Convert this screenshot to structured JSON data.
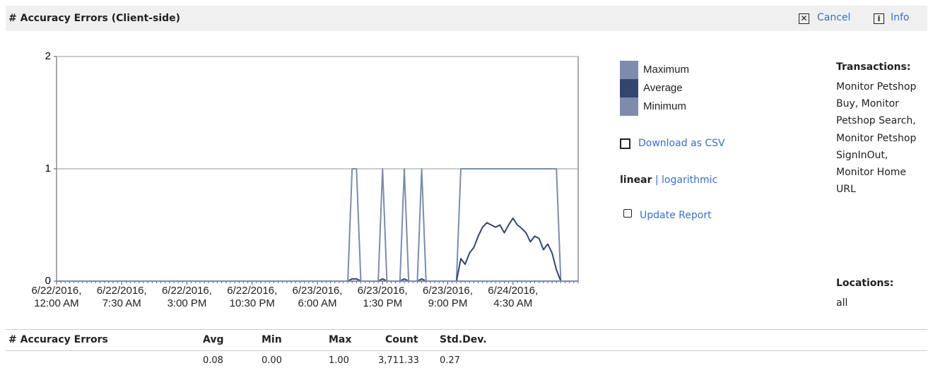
{
  "header": {
    "title": "# Accuracy Errors (Client-side)",
    "actions": [
      "Cancel",
      "Info"
    ]
  },
  "chart_data": {
    "type": "line",
    "categories": [
      "6/22/2016, 12:00 AM",
      null,
      null,
      null,
      null,
      null,
      null,
      null,
      null,
      null,
      null,
      null,
      null,
      null,
      null,
      "6/22/2016, 7:30 AM",
      null,
      null,
      null,
      null,
      null,
      null,
      null,
      null,
      null,
      null,
      null,
      null,
      null,
      null,
      "6/22/2016, 3:00 PM",
      null,
      null,
      null,
      null,
      null,
      null,
      null,
      null,
      null,
      null,
      null,
      null,
      null,
      null,
      "6/22/2016, 10:30 PM",
      null,
      null,
      null,
      null,
      null,
      null,
      null,
      null,
      null,
      null,
      null,
      null,
      null,
      null,
      "6/23/2016, 6:00 AM",
      null,
      null,
      null,
      null,
      null,
      null,
      null,
      null,
      null,
      null,
      null,
      null,
      null,
      null,
      "6/23/2016, 1:30 PM",
      null,
      null,
      null,
      null,
      null,
      null,
      null,
      null,
      null,
      null,
      null,
      null,
      null,
      null,
      "6/23/2016, 9:00 PM",
      null,
      null,
      null,
      null,
      null,
      null,
      null,
      null,
      null,
      null,
      null,
      null,
      null,
      null,
      "6/24/2016, 4:30 AM",
      null,
      null,
      null,
      null,
      null,
      null,
      null,
      null,
      null,
      null,
      null,
      null,
      null,
      null,
      null
    ],
    "series": [
      {
        "name": "Maximum",
        "color": "#7d8cad",
        "values": [
          0,
          0,
          0,
          0,
          0,
          0,
          0,
          0,
          0,
          0,
          0,
          0,
          0,
          0,
          0,
          0,
          0,
          0,
          0,
          0,
          0,
          0,
          0,
          0,
          0,
          0,
          0,
          0,
          0,
          0,
          0,
          0,
          0,
          0,
          0,
          0,
          0,
          0,
          0,
          0,
          0,
          0,
          0,
          0,
          0,
          0,
          0,
          0,
          0,
          0,
          0,
          0,
          0,
          0,
          0,
          0,
          0,
          0,
          0,
          0,
          0,
          0,
          0,
          0,
          0,
          0,
          0,
          0,
          1,
          1,
          0,
          0,
          0,
          0,
          0,
          1,
          0,
          0,
          0,
          0,
          1,
          0,
          0,
          0,
          1,
          0,
          0,
          0,
          0,
          0,
          0,
          0,
          0,
          1,
          1,
          1,
          1,
          1,
          1,
          1,
          1,
          1,
          1,
          1,
          1,
          1,
          1,
          1,
          1,
          1,
          1,
          1,
          1,
          1,
          1,
          1,
          0,
          0,
          0,
          0,
          0
        ]
      },
      {
        "name": "Average",
        "color": "#34466f",
        "values": [
          0,
          0,
          0,
          0,
          0,
          0,
          0,
          0,
          0,
          0,
          0,
          0,
          0,
          0,
          0,
          0,
          0,
          0,
          0,
          0,
          0,
          0,
          0,
          0,
          0,
          0,
          0,
          0,
          0,
          0,
          0,
          0,
          0,
          0,
          0,
          0,
          0,
          0,
          0,
          0,
          0,
          0,
          0,
          0,
          0,
          0,
          0,
          0,
          0,
          0,
          0,
          0,
          0,
          0,
          0,
          0,
          0,
          0,
          0,
          0,
          0,
          0,
          0,
          0,
          0,
          0,
          0,
          0,
          0.02,
          0.02,
          0,
          0,
          0,
          0,
          0,
          0.02,
          0,
          0,
          0,
          0,
          0.02,
          0,
          0,
          0,
          0.02,
          0,
          0,
          0,
          0,
          0,
          0,
          0,
          0,
          0.2,
          0.15,
          0.25,
          0.3,
          0.4,
          0.48,
          0.52,
          0.5,
          0.48,
          0.5,
          0.43,
          0.5,
          0.56,
          0.5,
          0.47,
          0.43,
          0.35,
          0.4,
          0.38,
          0.28,
          0.33,
          0.25,
          0.1,
          0,
          0,
          0,
          0,
          0
        ]
      },
      {
        "name": "Minimum",
        "color": "#7d8cad",
        "values": [
          0,
          0,
          0,
          0,
          0,
          0,
          0,
          0,
          0,
          0,
          0,
          0,
          0,
          0,
          0,
          0,
          0,
          0,
          0,
          0,
          0,
          0,
          0,
          0,
          0,
          0,
          0,
          0,
          0,
          0,
          0,
          0,
          0,
          0,
          0,
          0,
          0,
          0,
          0,
          0,
          0,
          0,
          0,
          0,
          0,
          0,
          0,
          0,
          0,
          0,
          0,
          0,
          0,
          0,
          0,
          0,
          0,
          0,
          0,
          0,
          0,
          0,
          0,
          0,
          0,
          0,
          0,
          0,
          0,
          0,
          0,
          0,
          0,
          0,
          0,
          0,
          0,
          0,
          0,
          0,
          0,
          0,
          0,
          0,
          0,
          0,
          0,
          0,
          0,
          0,
          0,
          0,
          0,
          0,
          0,
          0,
          0,
          0,
          0,
          0,
          0,
          0,
          0,
          0,
          0,
          0,
          0,
          0,
          0,
          0,
          0,
          0,
          0,
          0,
          0,
          0,
          0,
          0,
          0,
          0,
          0
        ]
      }
    ],
    "ylim": [
      0,
      2
    ],
    "yticks": [
      0,
      1,
      2
    ],
    "grid": true
  },
  "sidebar": {
    "download": "Download as CSV",
    "scale_options": [
      "linear",
      "logarithmic"
    ],
    "scale_separator": "|",
    "update": "Update Report",
    "transactions_label": "Transactions:",
    "transactions": "Monitor Petshop Buy, Monitor Petshop Search, Monitor Petshop SignInOut, Monitor Home URL",
    "locations_label": "Locations:",
    "locations": "all"
  },
  "table": {
    "columns": [
      "# Accuracy Errors",
      "Avg",
      "Min",
      "Max",
      "Count",
      "Std.Dev."
    ],
    "rows": [
      [
        "0.08",
        "0.00",
        "1.00",
        "3,711.33",
        "0.27"
      ]
    ]
  }
}
